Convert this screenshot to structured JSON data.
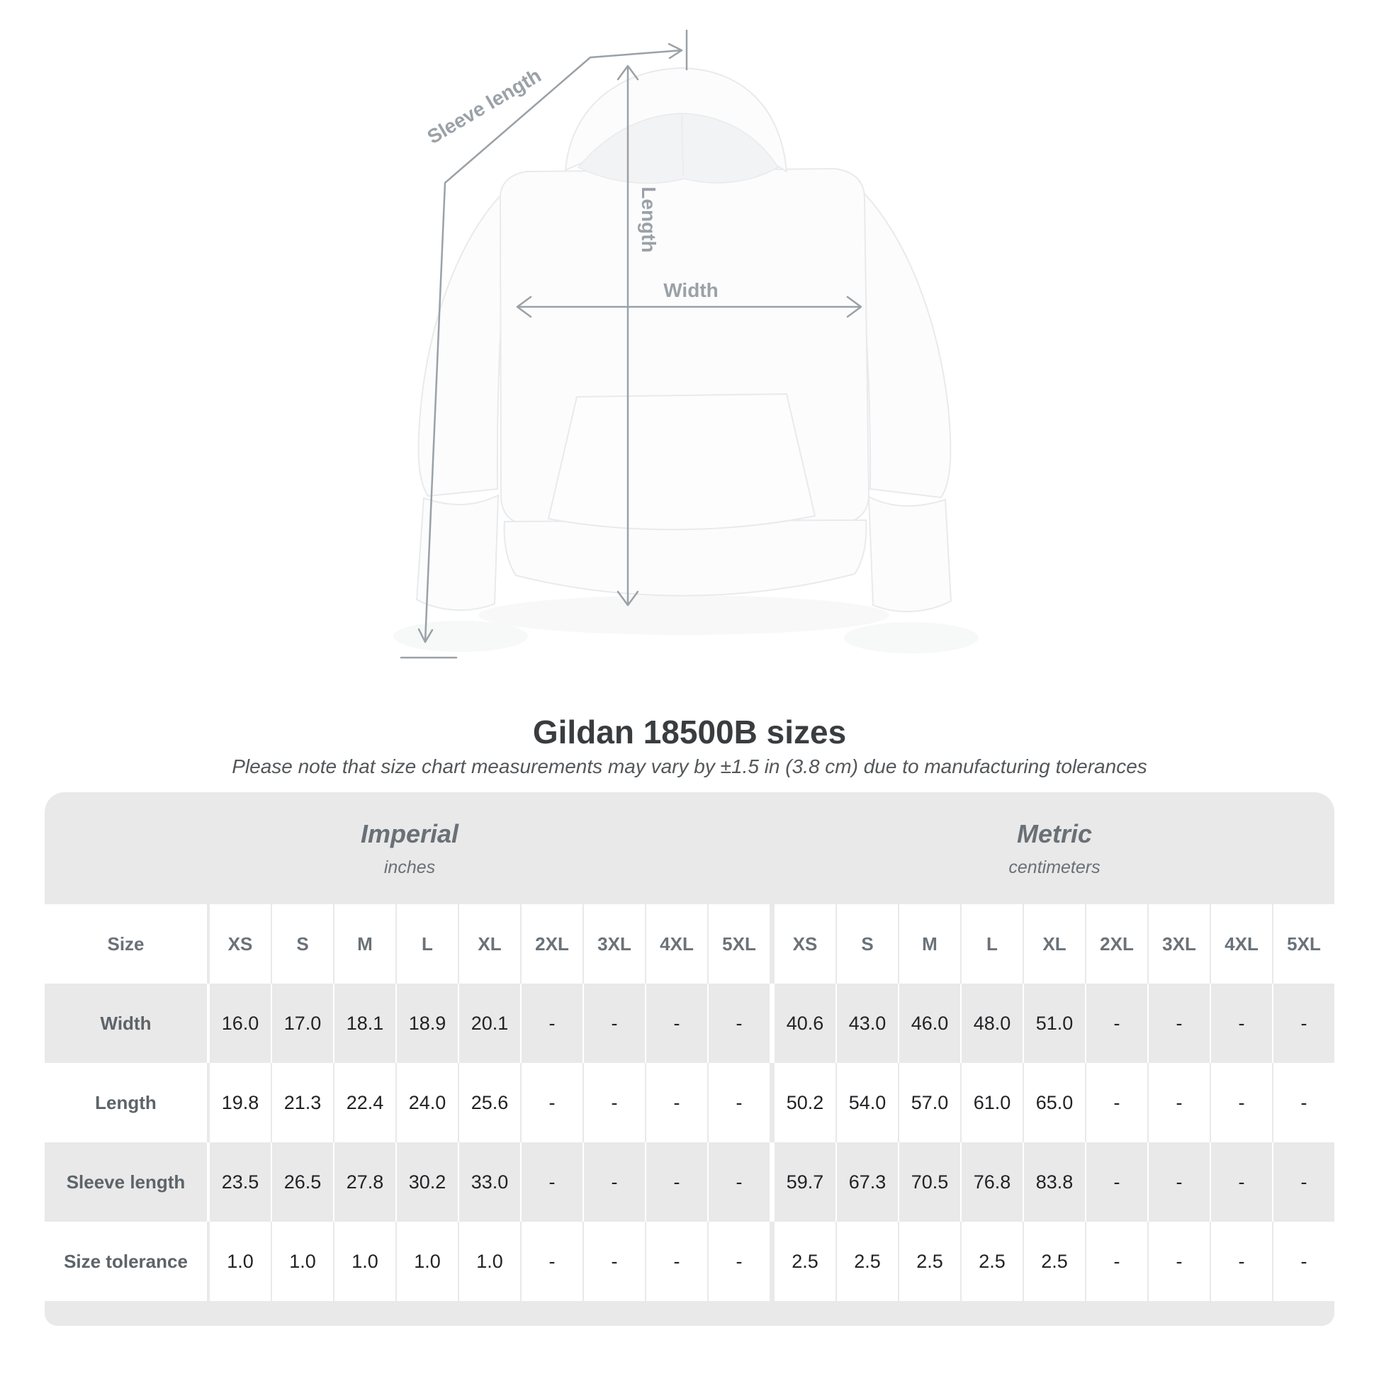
{
  "page": {
    "background": "#ffffff"
  },
  "diagram": {
    "sleeve_label": "Sleeve length",
    "length_label": "Length",
    "width_label": "Width",
    "arrow_color": "#9aa1a7"
  },
  "title": "Gildan 18500B sizes",
  "subtitle": "Please note that size chart measurements may vary by ±1.5 in (3.8 cm) due to manufacturing tolerances",
  "table": {
    "band_bg": "#e9e9e9",
    "alt_row_bg": "#e9e9e9",
    "size_label": "Size",
    "unit_groups": [
      {
        "name": "Imperial",
        "unit": "inches"
      },
      {
        "name": "Metric",
        "unit": "centimeters"
      }
    ],
    "sizes": [
      "XS",
      "S",
      "M",
      "L",
      "XL",
      "2XL",
      "3XL",
      "4XL",
      "5XL"
    ],
    "rows": [
      {
        "label": "Width",
        "imperial": [
          "16.0",
          "17.0",
          "18.1",
          "18.9",
          "20.1",
          "-",
          "-",
          "-",
          "-"
        ],
        "metric": [
          "40.6",
          "43.0",
          "46.0",
          "48.0",
          "51.0",
          "-",
          "-",
          "-",
          "-"
        ]
      },
      {
        "label": "Length",
        "imperial": [
          "19.8",
          "21.3",
          "22.4",
          "24.0",
          "25.6",
          "-",
          "-",
          "-",
          "-"
        ],
        "metric": [
          "50.2",
          "54.0",
          "57.0",
          "61.0",
          "65.0",
          "-",
          "-",
          "-",
          "-"
        ]
      },
      {
        "label": "Sleeve length",
        "imperial": [
          "23.5",
          "26.5",
          "27.8",
          "30.2",
          "33.0",
          "-",
          "-",
          "-",
          "-"
        ],
        "metric": [
          "59.7",
          "67.3",
          "70.5",
          "76.8",
          "83.8",
          "-",
          "-",
          "-",
          "-"
        ]
      },
      {
        "label": "Size tolerance",
        "imperial": [
          "1.0",
          "1.0",
          "1.0",
          "1.0",
          "1.0",
          "-",
          "-",
          "-",
          "-"
        ],
        "metric": [
          "2.5",
          "2.5",
          "2.5",
          "2.5",
          "2.5",
          "-",
          "-",
          "-",
          "-"
        ]
      }
    ]
  },
  "chart_data": {
    "type": "table",
    "title": "Gildan 18500B sizes",
    "note": "Please note that size chart measurements may vary by ±1.5 in (3.8 cm) due to manufacturing tolerances",
    "units": [
      "Imperial (inches)",
      "Metric (centimeters)"
    ],
    "sizes": [
      "XS",
      "S",
      "M",
      "L",
      "XL",
      "2XL",
      "3XL",
      "4XL",
      "5XL"
    ],
    "measurements": [
      {
        "label": "Width",
        "imperial_in": [
          16.0,
          17.0,
          18.1,
          18.9,
          20.1,
          null,
          null,
          null,
          null
        ],
        "metric_cm": [
          40.6,
          43.0,
          46.0,
          48.0,
          51.0,
          null,
          null,
          null,
          null
        ]
      },
      {
        "label": "Length",
        "imperial_in": [
          19.8,
          21.3,
          22.4,
          24.0,
          25.6,
          null,
          null,
          null,
          null
        ],
        "metric_cm": [
          50.2,
          54.0,
          57.0,
          61.0,
          65.0,
          null,
          null,
          null,
          null
        ]
      },
      {
        "label": "Sleeve length",
        "imperial_in": [
          23.5,
          26.5,
          27.8,
          30.2,
          33.0,
          null,
          null,
          null,
          null
        ],
        "metric_cm": [
          59.7,
          67.3,
          70.5,
          76.8,
          83.8,
          null,
          null,
          null,
          null
        ]
      },
      {
        "label": "Size tolerance",
        "imperial_in": [
          1.0,
          1.0,
          1.0,
          1.0,
          1.0,
          null,
          null,
          null,
          null
        ],
        "metric_cm": [
          2.5,
          2.5,
          2.5,
          2.5,
          2.5,
          null,
          null,
          null,
          null
        ]
      }
    ]
  }
}
